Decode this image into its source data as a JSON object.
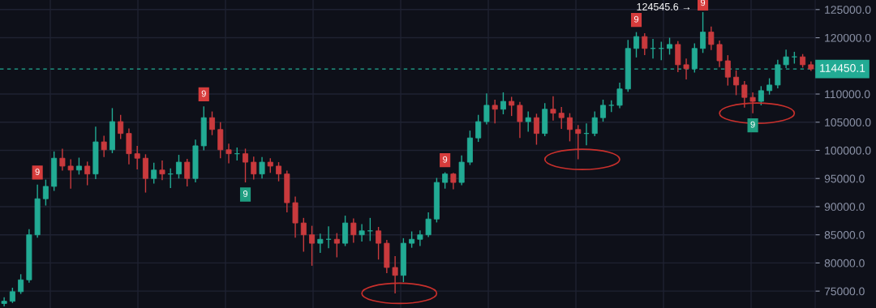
{
  "chart_data": {
    "type": "candlestick",
    "categories": [
      null,
      null,
      null,
      null,
      null,
      null,
      null,
      null,
      null,
      null,
      null,
      null,
      null,
      null,
      null,
      null,
      null,
      null,
      null,
      null,
      null,
      null,
      null,
      null,
      null,
      null,
      null,
      null,
      null,
      null,
      null,
      null,
      null,
      null,
      null,
      null,
      null,
      null,
      null,
      null,
      null,
      null,
      null,
      null,
      null,
      null,
      null,
      null,
      null,
      null,
      null,
      null,
      null,
      null,
      null,
      null,
      null,
      null,
      null,
      null,
      null,
      null,
      null,
      null,
      null,
      null,
      null,
      null,
      null,
      null,
      null,
      null,
      null,
      null,
      null,
      null,
      null,
      null,
      null,
      null,
      null,
      null,
      null,
      null,
      null,
      null,
      null,
      null,
      null,
      null,
      null,
      null,
      null,
      null,
      null,
      null,
      null,
      null
    ],
    "ohlc": [
      [
        72800,
        73900,
        72300,
        73200
      ],
      [
        73200,
        75600,
        72900,
        74900
      ],
      [
        74900,
        78000,
        74500,
        77000
      ],
      [
        77000,
        86000,
        76500,
        85000
      ],
      [
        85000,
        93900,
        84500,
        91400
      ],
      [
        91400,
        94800,
        90200,
        93600
      ],
      [
        93600,
        99800,
        92800,
        98600
      ],
      [
        98600,
        100300,
        96400,
        97200
      ],
      [
        97200,
        98400,
        93200,
        96500
      ],
      [
        96500,
        98700,
        95700,
        97200
      ],
      [
        97200,
        98000,
        93800,
        95800
      ],
      [
        95800,
        104200,
        94900,
        101500
      ],
      [
        101500,
        102600,
        98800,
        100100
      ],
      [
        100100,
        107500,
        99500,
        105100
      ],
      [
        105100,
        106300,
        102000,
        103000
      ],
      [
        103000,
        103900,
        97500,
        99400
      ],
      [
        99400,
        100800,
        96600,
        98600
      ],
      [
        98600,
        99300,
        92500,
        95000
      ],
      [
        95000,
        97800,
        94100,
        96500
      ],
      [
        96500,
        98200,
        94700,
        95800
      ],
      [
        95800,
        96800,
        93300,
        95800
      ],
      [
        95800,
        99200,
        95000,
        97900
      ],
      [
        97900,
        98500,
        93600,
        95000
      ],
      [
        95000,
        101900,
        94300,
        100800
      ],
      [
        100800,
        107800,
        100000,
        105800
      ],
      [
        105800,
        106900,
        102700,
        103700
      ],
      [
        103700,
        105000,
        98600,
        100100
      ],
      [
        100100,
        101200,
        97700,
        99400
      ],
      [
        99400,
        100500,
        98200,
        99400
      ],
      [
        99400,
        100300,
        94300,
        97900
      ],
      [
        97900,
        98900,
        94800,
        95800
      ],
      [
        95800,
        98800,
        95000,
        97900
      ],
      [
        97900,
        98600,
        96000,
        97200
      ],
      [
        97200,
        97900,
        94500,
        95800
      ],
      [
        95800,
        96400,
        89000,
        90700
      ],
      [
        90700,
        91800,
        84500,
        87100
      ],
      [
        87100,
        88000,
        82000,
        85000
      ],
      [
        85000,
        86600,
        79500,
        83500
      ],
      [
        83500,
        85200,
        81800,
        84200
      ],
      [
        84200,
        86500,
        82600,
        84200
      ],
      [
        84200,
        85300,
        81000,
        83500
      ],
      [
        83500,
        88400,
        83000,
        87100
      ],
      [
        87100,
        87900,
        83600,
        85000
      ],
      [
        85000,
        86900,
        83800,
        85700
      ],
      [
        85700,
        88000,
        83900,
        85700
      ],
      [
        85700,
        86400,
        80600,
        83500
      ],
      [
        83500,
        84100,
        78200,
        79200
      ],
      [
        79200,
        81200,
        74600,
        77800
      ],
      [
        77800,
        84400,
        76600,
        83500
      ],
      [
        83500,
        85600,
        82700,
        84200
      ],
      [
        84200,
        85800,
        83000,
        85000
      ],
      [
        85000,
        89000,
        84600,
        87800
      ],
      [
        87800,
        95100,
        87200,
        94300
      ],
      [
        94300,
        96100,
        93200,
        95800
      ],
      [
        95800,
        96000,
        93100,
        94300
      ],
      [
        94300,
        99100,
        93800,
        97900
      ],
      [
        97900,
        103500,
        97400,
        102200
      ],
      [
        102200,
        106300,
        101500,
        105100
      ],
      [
        105100,
        110100,
        104600,
        108000
      ],
      [
        108000,
        109000,
        104800,
        107300
      ],
      [
        107300,
        110300,
        106400,
        108700
      ],
      [
        108700,
        109500,
        106100,
        108000
      ],
      [
        108000,
        108600,
        102200,
        105100
      ],
      [
        105100,
        106900,
        103300,
        105800
      ],
      [
        105800,
        106500,
        101000,
        103000
      ],
      [
        103000,
        108400,
        102500,
        107300
      ],
      [
        107300,
        109600,
        105300,
        106600
      ],
      [
        106600,
        107700,
        103800,
        105800
      ],
      [
        105800,
        106600,
        101600,
        103700
      ],
      [
        103700,
        104500,
        98400,
        103000
      ],
      [
        103000,
        104800,
        100900,
        103000
      ],
      [
        103000,
        106900,
        102500,
        105800
      ],
      [
        105800,
        109000,
        105100,
        108000
      ],
      [
        108000,
        108900,
        106800,
        108000
      ],
      [
        108000,
        112000,
        107500,
        110900
      ],
      [
        110900,
        119600,
        110400,
        118100
      ],
      [
        118100,
        121000,
        116500,
        120200
      ],
      [
        120200,
        120800,
        116900,
        118100
      ],
      [
        118100,
        119800,
        116300,
        118100
      ],
      [
        118100,
        119300,
        116000,
        118100
      ],
      [
        118100,
        120000,
        117000,
        118800
      ],
      [
        118800,
        119400,
        113900,
        115200
      ],
      [
        115200,
        116300,
        112600,
        114500
      ],
      [
        114500,
        119000,
        113800,
        118100
      ],
      [
        118100,
        124545.6,
        117300,
        121000
      ],
      [
        121000,
        122000,
        117800,
        118800
      ],
      [
        118800,
        119500,
        114800,
        115900
      ],
      [
        115900,
        116900,
        111500,
        113000
      ],
      [
        113000,
        114200,
        109800,
        111600
      ],
      [
        111600,
        112300,
        107600,
        109400
      ],
      [
        109400,
        110300,
        106600,
        108700
      ],
      [
        108700,
        111400,
        108000,
        110600
      ],
      [
        110600,
        112800,
        109900,
        111600
      ],
      [
        111600,
        116100,
        111000,
        115200
      ],
      [
        115200,
        117900,
        114600,
        116600
      ],
      [
        116600,
        117500,
        115400,
        116600
      ],
      [
        116600,
        117100,
        114700,
        115200
      ],
      [
        115200,
        115800,
        114100,
        114450.1
      ]
    ],
    "ylim": [
      72000,
      126700
    ],
    "yticks": [
      {
        "value": 75000,
        "label": "75000.0"
      },
      {
        "value": 80000,
        "label": "80000.0"
      },
      {
        "value": 85000,
        "label": "85000.0"
      },
      {
        "value": 90000,
        "label": "90000.0"
      },
      {
        "value": 95000,
        "label": "95000.0"
      },
      {
        "value": 100000,
        "label": "100000.0"
      },
      {
        "value": 105000,
        "label": "105000.0"
      },
      {
        "value": 110000,
        "label": "110000.0"
      },
      {
        "value": 120000,
        "label": "120000.0"
      },
      {
        "value": 125000,
        "label": "125000.0"
      }
    ],
    "ref_lines": [
      {
        "axis": "y",
        "value": 114450.1,
        "label": "114450.1",
        "color": "#22ab94",
        "line_style": "dashed"
      }
    ],
    "annotations": [
      "9",
      "9",
      "9",
      "9",
      "9",
      "9",
      "124545.6 →",
      "9"
    ],
    "grid": true,
    "tick_labels": "y"
  }
}
